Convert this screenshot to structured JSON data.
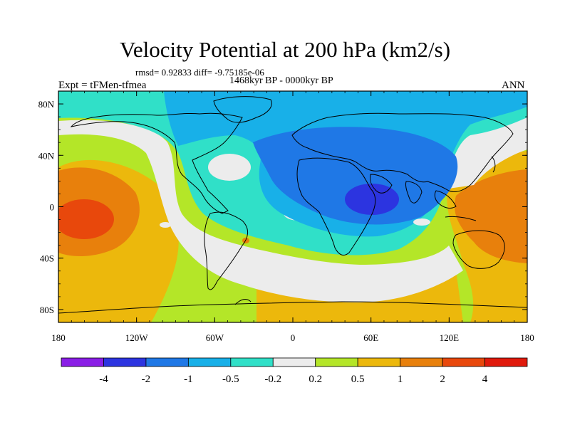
{
  "title": "Velocity Potential at 200 hPa (km2/s)",
  "stats": "rmsd= 0.92833 diff= -9.75185e-06",
  "period": "1468kyr BP - 0000kyr BP",
  "left_label": "Expt = tFMen-tfmea",
  "right_label": "ANN",
  "lat_ticks": [
    {
      "label": "80N",
      "lat": 80
    },
    {
      "label": "40N",
      "lat": 40
    },
    {
      "label": "0",
      "lat": 0
    },
    {
      "label": "40S",
      "lat": -40
    },
    {
      "label": "80S",
      "lat": -80
    }
  ],
  "lon_ticks": [
    {
      "label": "180",
      "lon": -180
    },
    {
      "label": "120W",
      "lon": -120
    },
    {
      "label": "60W",
      "lon": -60
    },
    {
      "label": "0",
      "lon": 0
    },
    {
      "label": "60E",
      "lon": 60
    },
    {
      "label": "120E",
      "lon": 120
    },
    {
      "label": "180",
      "lon": 180
    }
  ],
  "colorbar": {
    "colors": [
      "#8a1ee6",
      "#2c34e0",
      "#1f78e6",
      "#18b0e8",
      "#30e0c8",
      "#ececec",
      "#b4e628",
      "#ecb80c",
      "#e8800c",
      "#e8480c",
      "#e01a0c"
    ],
    "labels": [
      "-4",
      "-2",
      "-1",
      "-0.5",
      "-0.2",
      "0.2",
      "0.5",
      "1",
      "2",
      "4"
    ]
  }
}
